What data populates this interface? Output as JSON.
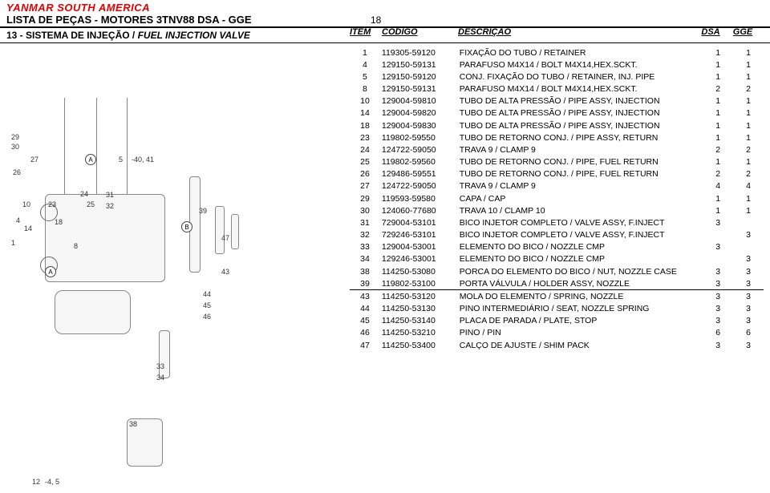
{
  "brand": "YANMAR SOUTH AMERICA",
  "title": "LISTA DE PEÇAS -  MOTORES 3TNV88 DSA - GGE",
  "page_number": "18",
  "section_label": "13 - SISTEMA DE INJEÇÃO / ",
  "section_label_italic": "FUEL INJECTION VALVE",
  "columns": {
    "item": "ITEM",
    "codigo": "CÓDIGO",
    "descricao": "DESCRIÇÃO",
    "dsa": "DSA",
    "gge": "GGE"
  },
  "rows": [
    {
      "item": "1",
      "codigo": "119305-59120",
      "descricao": "FIXAÇÃO DO TUBO / RETAINER",
      "dsa": "1",
      "gge": "1"
    },
    {
      "item": "4",
      "codigo": "129150-59131",
      "descricao": "PARAFUSO M4X14 / BOLT M4X14,HEX.SCKT.",
      "dsa": "1",
      "gge": "1"
    },
    {
      "item": "5",
      "codigo": "129150-59120",
      "descricao": "CONJ. FIXAÇÃO DO TUBO / RETAINER, INJ. PIPE",
      "dsa": "1",
      "gge": "1"
    },
    {
      "item": "8",
      "codigo": "129150-59131",
      "descricao": "PARAFUSO M4X14 / BOLT M4X14,HEX.SCKT.",
      "dsa": "2",
      "gge": "2"
    },
    {
      "item": "10",
      "codigo": "129004-59810",
      "descricao": "TUBO DE ALTA PRESSÃO / PIPE ASSY, INJECTION",
      "dsa": "1",
      "gge": "1"
    },
    {
      "item": "14",
      "codigo": "129004-59820",
      "descricao": "TUBO DE ALTA PRESSÃO / PIPE ASSY, INJECTION",
      "dsa": "1",
      "gge": "1"
    },
    {
      "item": "18",
      "codigo": "129004-59830",
      "descricao": "TUBO DE ALTA PRESSÃO / PIPE ASSY, INJECTION",
      "dsa": "1",
      "gge": "1"
    },
    {
      "item": "23",
      "codigo": "119802-59550",
      "descricao": "TUBO DE RETORNO CONJ. / PIPE ASSY, RETURN",
      "dsa": "1",
      "gge": "1"
    },
    {
      "item": "24",
      "codigo": "124722-59050",
      "descricao": "TRAVA 9 / CLAMP 9",
      "dsa": "2",
      "gge": "2"
    },
    {
      "item": "25",
      "codigo": "119802-59560",
      "descricao": "TUBO DE RETORNO CONJ. / PIPE, FUEL RETURN",
      "dsa": "1",
      "gge": "1"
    },
    {
      "item": "26",
      "codigo": "129486-59551",
      "descricao": "TUBO DE RETORNO CONJ. / PIPE, FUEL RETURN",
      "dsa": "2",
      "gge": "2"
    },
    {
      "item": "27",
      "codigo": "124722-59050",
      "descricao": "TRAVA 9 / CLAMP 9",
      "dsa": "4",
      "gge": "4"
    },
    {
      "item": "29",
      "codigo": "119593-59580",
      "descricao": "CAPA / CAP",
      "dsa": "1",
      "gge": "1"
    },
    {
      "item": "30",
      "codigo": "124060-77680",
      "descricao": "TRAVA 10 / CLAMP 10",
      "dsa": "1",
      "gge": "1"
    },
    {
      "item": "31",
      "codigo": "729004-53101",
      "descricao": "BICO INJETOR COMPLETO / VALVE ASSY, F.INJECT",
      "dsa": "3",
      "gge": ""
    },
    {
      "item": "32",
      "codigo": "729246-53101",
      "descricao": "BICO INJETOR COMPLETO / VALVE ASSY, F.INJECT",
      "dsa": "",
      "gge": "3"
    },
    {
      "item": "33",
      "codigo": "129004-53001",
      "descricao": "ELEMENTO DO BICO / NOZZLE CMP",
      "dsa": "3",
      "gge": ""
    },
    {
      "item": "34",
      "codigo": "129246-53001",
      "descricao": "ELEMENTO DO BICO / NOZZLE CMP",
      "dsa": "",
      "gge": "3"
    },
    {
      "item": "38",
      "codigo": "114250-53080",
      "descricao": "PORCA DO ELEMENTO DO BICO / NUT, NOZZLE CASE",
      "dsa": "3",
      "gge": "3"
    },
    {
      "item": "39",
      "codigo": "119802-53100",
      "descricao": "PORTA VÁLVULA / HOLDER ASSY, NOZZLE",
      "dsa": "3",
      "gge": "3"
    },
    {
      "item": "43",
      "codigo": "114250-53120",
      "descricao": "MOLA DO ELEMENTO / SPRING, NOZZLE",
      "dsa": "3",
      "gge": "3",
      "divider": true
    },
    {
      "item": "44",
      "codigo": "114250-53130",
      "descricao": "PINO INTERMEDIÁRIO / SEAT, NOZZLE SPRING",
      "dsa": "3",
      "gge": "3"
    },
    {
      "item": "45",
      "codigo": "114250-53140",
      "descricao": "PLACA DE PARADA / PLATE, STOP",
      "dsa": "3",
      "gge": "3"
    },
    {
      "item": "46",
      "codigo": "114250-53210",
      "descricao": "PINO / PIN",
      "dsa": "6",
      "gge": "6"
    },
    {
      "item": "47",
      "codigo": "114250-53400",
      "descricao": "CALÇO DE AJUSTE / SHIM PACK",
      "dsa": "3",
      "gge": "3"
    }
  ],
  "diagram_note_A": "A",
  "diagram_note_B": "B",
  "diag_nums": [
    "1",
    "4",
    "5",
    "8",
    "10",
    "14",
    "18",
    "23",
    "24",
    "25",
    "26",
    "27",
    "29",
    "30",
    "31",
    "32",
    "33",
    "34",
    "38",
    "39",
    "43",
    "44",
    "45",
    "46",
    "47",
    "12"
  ],
  "diag_foot": "-4, 5",
  "diag_side": "-40, 41",
  "colors": {
    "brand": "#d00000",
    "rule": "#000000",
    "ink": "#222222"
  }
}
